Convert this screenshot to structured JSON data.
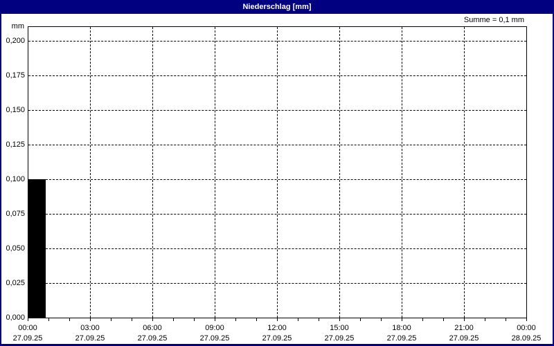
{
  "window": {
    "title": "Niederschlag [mm]"
  },
  "colors": {
    "titlebar_bg": "#000080",
    "titlebar_text": "#ffffff",
    "window_border": "#000080",
    "plot_border": "#000000",
    "grid": "#000000",
    "background": "#ffffff",
    "text": "#000000"
  },
  "chart_data": {
    "type": "bar",
    "title": "Niederschlag [mm]",
    "unit_label": "mm",
    "sum": {
      "label": "Summe = 0,1 mm",
      "value": 0.1,
      "unit": "mm"
    },
    "ylim": [
      0,
      0.2
    ],
    "grid": "dashed",
    "legend_position": "none",
    "y_ticks": [
      {
        "value": 0.0,
        "label": "0,000"
      },
      {
        "value": 0.025,
        "label": "0,025"
      },
      {
        "value": 0.05,
        "label": "0,050"
      },
      {
        "value": 0.075,
        "label": "0,075"
      },
      {
        "value": 0.1,
        "label": "0,100"
      },
      {
        "value": 0.125,
        "label": "0,125"
      },
      {
        "value": 0.15,
        "label": "0,150"
      },
      {
        "value": 0.175,
        "label": "0,175"
      },
      {
        "value": 0.2,
        "label": "0,200"
      }
    ],
    "x_axis": {
      "range_hours": 24,
      "minor_tick_hours": 1,
      "major_tick_hours": 3,
      "major_ticks": [
        {
          "hour": 0,
          "time": "00:00",
          "date": "27.09.25"
        },
        {
          "hour": 3,
          "time": "03:00",
          "date": "27.09.25"
        },
        {
          "hour": 6,
          "time": "06:00",
          "date": "27.09.25"
        },
        {
          "hour": 9,
          "time": "09:00",
          "date": "27.09.25"
        },
        {
          "hour": 12,
          "time": "12:00",
          "date": "27.09.25"
        },
        {
          "hour": 15,
          "time": "15:00",
          "date": "27.09.25"
        },
        {
          "hour": 18,
          "time": "18:00",
          "date": "27.09.25"
        },
        {
          "hour": 21,
          "time": "21:00",
          "date": "27.09.25"
        },
        {
          "hour": 24,
          "time": "00:00",
          "date": "28.09.25"
        }
      ]
    },
    "series": [
      {
        "name": "Niederschlag",
        "type": "bar",
        "color": "#000000",
        "points": [
          {
            "start_hour": 0,
            "end_hour": 0.83,
            "value": 0.1,
            "value_label": "0,100"
          }
        ]
      }
    ]
  }
}
